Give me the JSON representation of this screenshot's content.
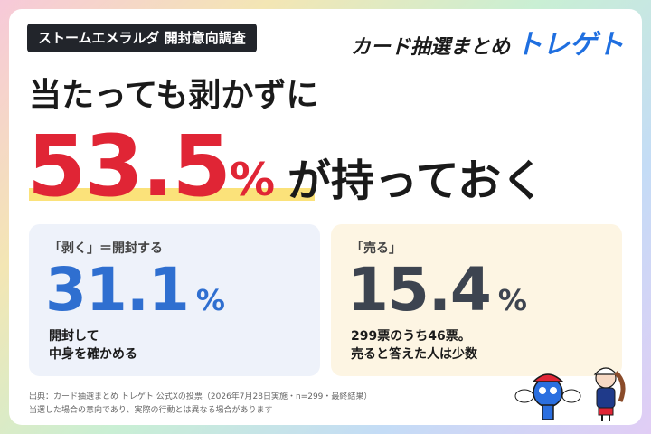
{
  "badge": "ストームエメラルダ 開封意向調査",
  "logo": {
    "text": "カード抽選まとめ",
    "brand": "トレゲト"
  },
  "headline": "当たっても剥かずに",
  "main": {
    "value": "53.5",
    "unit": "%",
    "tail": "が持っておく"
  },
  "cards": [
    {
      "label": "「剥く」＝開封する",
      "value": "31.1",
      "unit": "%",
      "lines": [
        "開封して",
        "中身を確かめる"
      ]
    },
    {
      "label": "「売る」",
      "value": "15.4",
      "unit": "%",
      "lines": [
        "299票のうち46票。",
        "売ると答えた人は少数"
      ]
    }
  ],
  "footer": [
    "出典：カード抽選まとめ トレゲト 公式Xの投票（2026年7月28日実施・n=299・最終結果）",
    "当選した場合の意向であり、実際の行動とは異なる場合があります"
  ]
}
